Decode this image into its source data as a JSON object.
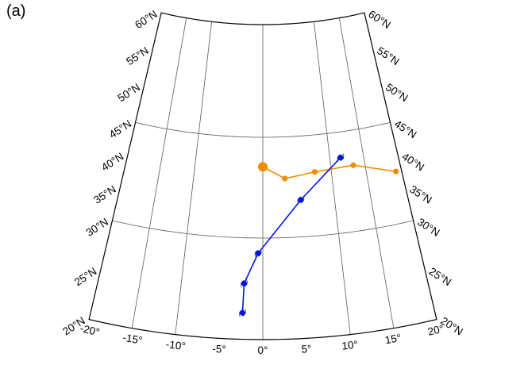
{
  "panel_label": "(a)",
  "latitude_labels": {
    "60": "60°N",
    "55": "55°N",
    "50": "50°N",
    "45": "45°N",
    "40": "40°N",
    "35": "35°N",
    "30": "30°N",
    "25": "25°N",
    "20": "20°N"
  },
  "longitude_labels": {
    "-20": "-20°",
    "-15": "-15°",
    "-10": "-10°",
    "-5": "-5°",
    "0": "0°",
    "5": "5°",
    "10": "10°",
    "15": "15°",
    "20": "20°"
  },
  "colors": {
    "frame": "#000000",
    "graticule": "#5a5a5a",
    "track_orange": "#f08c00",
    "track_blue": "#0014e6"
  },
  "map_data": {
    "projection": "conic (lambert-like)",
    "lon_range": [
      -20,
      20
    ],
    "lat_range": [
      20,
      60
    ],
    "graticule_lons": [
      -15,
      -10,
      0,
      10,
      15
    ],
    "graticule_lats": [
      30,
      45
    ],
    "tracks": [
      {
        "color_key": "track_orange",
        "points": [
          {
            "lon": 0.0,
            "lat": 40.6,
            "start": true
          },
          {
            "lon": 3.2,
            "lat": 38.8
          },
          {
            "lon": 7.6,
            "lat": 39.5
          },
          {
            "lon": 13.3,
            "lat": 39.8
          },
          {
            "lon": 19.2,
            "lat": 37.7
          }
        ]
      },
      {
        "color_key": "track_blue",
        "symbol": "hurricane",
        "points": [
          {
            "lon": -2.4,
            "lat": 22.6
          },
          {
            "lon": -2.3,
            "lat": 25.5
          },
          {
            "lon": -0.6,
            "lat": 28.5
          },
          {
            "lon": 5.3,
            "lat": 35.5
          },
          {
            "lon": 11.6,
            "lat": 41.2
          }
        ]
      }
    ]
  }
}
